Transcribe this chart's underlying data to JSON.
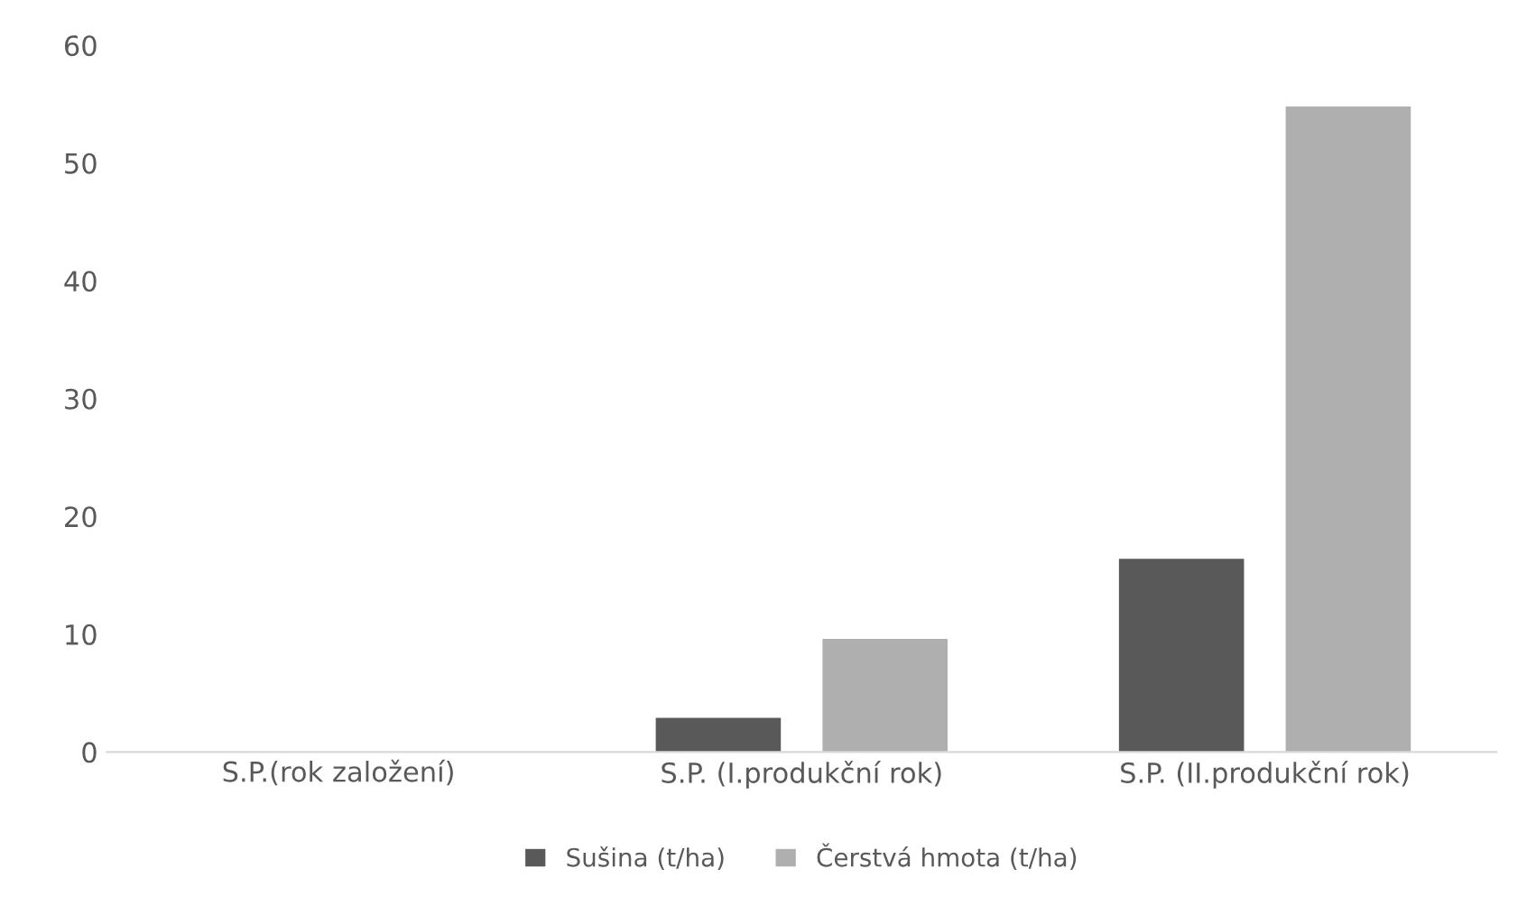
{
  "chart_data": {
    "type": "bar",
    "categories": [
      "S.P.(rok založení)",
      "S.P. (I.produkční rok)",
      "S.P. (II.produkční rok)"
    ],
    "series": [
      {
        "name": "Sušina (t/ha)",
        "color": "#595959",
        "values": [
          0,
          2.9,
          16.4
        ]
      },
      {
        "name": "Čerstvá hmota (t/ha)",
        "color": "#afafaf",
        "values": [
          0,
          9.6,
          54.8
        ]
      }
    ],
    "ylim": [
      0,
      60
    ],
    "yticks": [
      0,
      10,
      20,
      30,
      40,
      50,
      60
    ],
    "grid": false,
    "legend": "bottom"
  }
}
